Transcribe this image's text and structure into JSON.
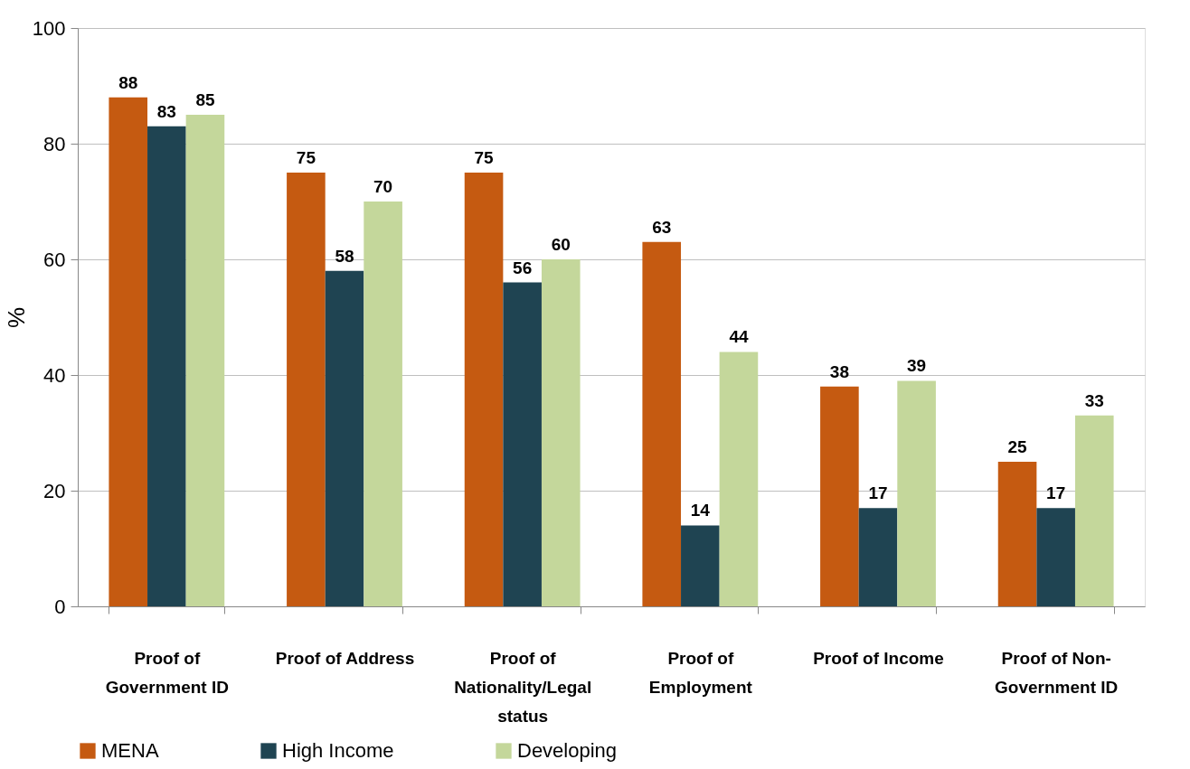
{
  "chart_data": {
    "type": "bar",
    "ylabel": "%",
    "categories": [
      "Proof of Government ID",
      "Proof of Address",
      "Proof of Nationality/Legal status",
      "Proof of Employment",
      "Proof of Income",
      "Proof of Non-Government ID"
    ],
    "series": [
      {
        "name": "MENA",
        "color": "#c55a11",
        "values": [
          88,
          75,
          75,
          63,
          38,
          25
        ]
      },
      {
        "name": "High Income",
        "color": "#1f4452",
        "values": [
          83,
          58,
          56,
          14,
          17,
          17
        ]
      },
      {
        "name": "Developing",
        "color": "#c4d79b",
        "values": [
          85,
          70,
          60,
          44,
          39,
          33
        ]
      }
    ],
    "ylim": [
      0,
      100
    ],
    "yticks": [
      0,
      20,
      40,
      60,
      80,
      100
    ],
    "grid": "y",
    "legend": "bottom",
    "data_labels": true
  }
}
